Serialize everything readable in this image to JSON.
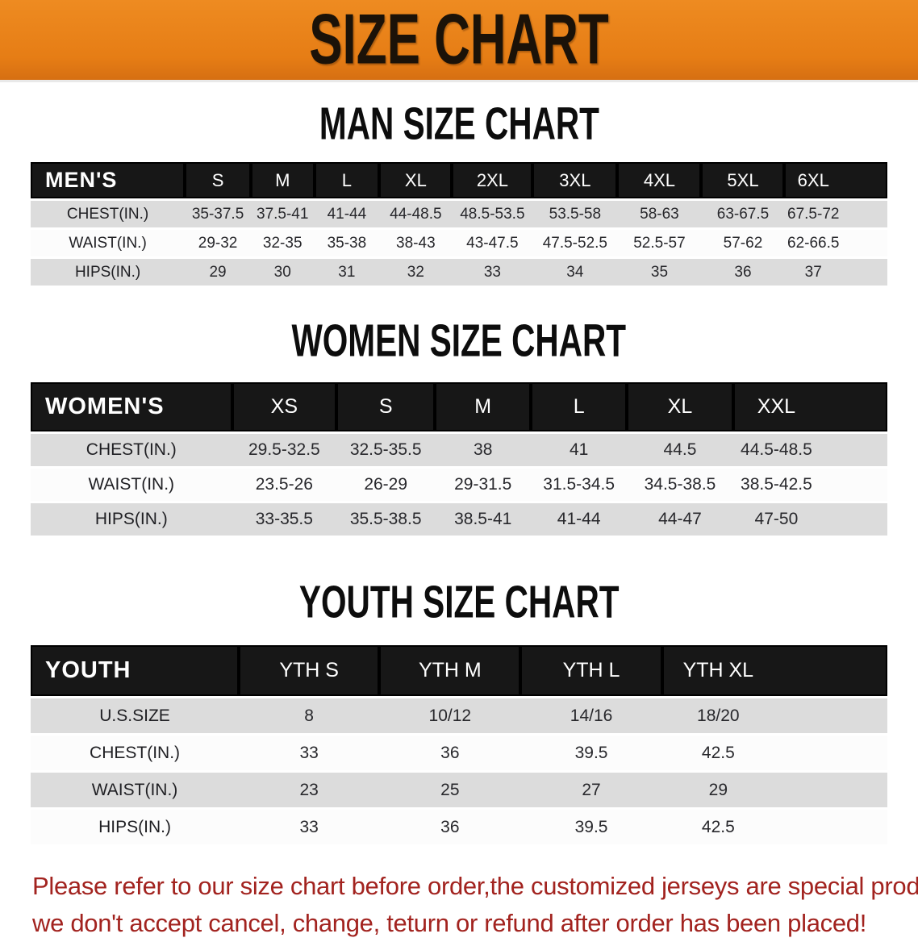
{
  "banner": {
    "title": "SIZE CHART",
    "bg_color": "#E67D15",
    "text_color": "#1B1208"
  },
  "sections": [
    {
      "heading": "MAN SIZE CHART",
      "table": {
        "corner": "MEN'S",
        "columns": [
          "S",
          "M",
          "L",
          "XL",
          "2XL",
          "3XL",
          "4XL",
          "5XL",
          "6XL"
        ],
        "rows": [
          {
            "label": "CHEST(IN.)",
            "values": [
              "35-37.5",
              "37.5-41",
              "41-44",
              "44-48.5",
              "48.5-53.5",
              "53.5-58",
              "58-63",
              "63-67.5",
              "67.5-72"
            ]
          },
          {
            "label": "WAIST(IN.)",
            "values": [
              "29-32",
              "32-35",
              "35-38",
              "38-43",
              "43-47.5",
              "47.5-52.5",
              "52.5-57",
              "57-62",
              "62-66.5"
            ]
          },
          {
            "label": "HIPS(IN.)",
            "values": [
              "29",
              "30",
              "31",
              "32",
              "33",
              "34",
              "35",
              "36",
              "37"
            ]
          }
        ]
      }
    },
    {
      "heading": "WOMEN SIZE CHART",
      "table": {
        "corner": "WOMEN'S",
        "columns": [
          "XS",
          "S",
          "M",
          "L",
          "XL",
          "XXL"
        ],
        "rows": [
          {
            "label": "CHEST(IN.)",
            "values": [
              "29.5-32.5",
              "32.5-35.5",
              "38",
              "41",
              "44.5",
              "44.5-48.5"
            ]
          },
          {
            "label": "WAIST(IN.)",
            "values": [
              "23.5-26",
              "26-29",
              "29-31.5",
              "31.5-34.5",
              "34.5-38.5",
              "38.5-42.5"
            ]
          },
          {
            "label": "HIPS(IN.)",
            "values": [
              "33-35.5",
              "35.5-38.5",
              "38.5-41",
              "41-44",
              "44-47",
              "47-50"
            ]
          }
        ]
      }
    },
    {
      "heading": "YOUTH SIZE CHART",
      "table": {
        "corner": "YOUTH",
        "columns": [
          "YTH S",
          "YTH M",
          "YTH L",
          "YTH XL"
        ],
        "rows": [
          {
            "label": "U.S.SIZE",
            "values": [
              "8",
              "10/12",
              "14/16",
              "18/20"
            ]
          },
          {
            "label": "CHEST(IN.)",
            "values": [
              "33",
              "36",
              "39.5",
              "42.5"
            ]
          },
          {
            "label": "WAIST(IN.)",
            "values": [
              "23",
              "25",
              "27",
              "29"
            ]
          },
          {
            "label": "HIPS(IN.)",
            "values": [
              "33",
              "36",
              "39.5",
              "42.5"
            ]
          }
        ]
      }
    }
  ],
  "footer": {
    "lines": [
      "Please refer to our size chart before order,the customized jerseys are special products,",
      "we don't accept cancel, change, teturn or refund after order has been placed!"
    ],
    "text_color": "#A2231F"
  },
  "row_colors": {
    "shaded": "#DCDCDC",
    "plain": "#FCFCFC",
    "header": "#171717"
  }
}
